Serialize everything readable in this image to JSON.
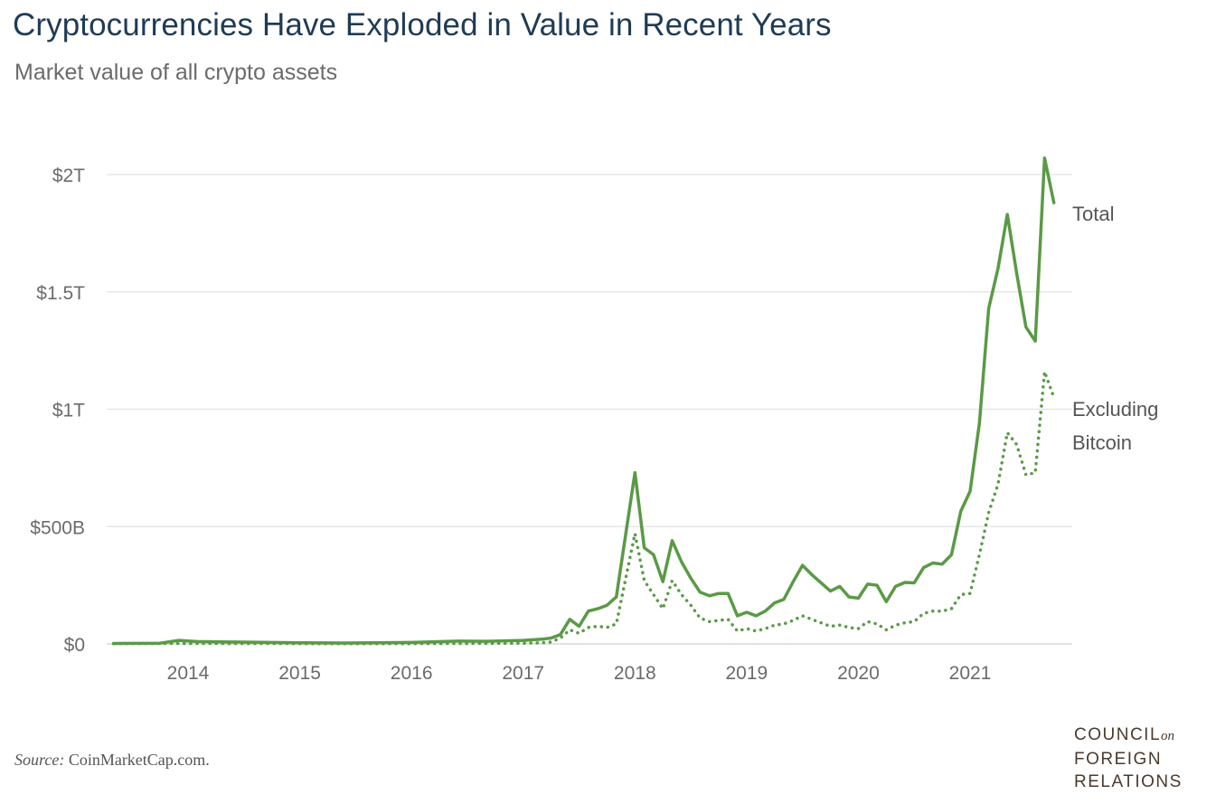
{
  "chart_data": {
    "type": "line",
    "title": "Cryptocurrencies Have Exploded in Value in Recent Years",
    "subtitle": "Market value of all crypto assets",
    "xlabel": "",
    "ylabel": "",
    "x_ticks": [
      "2014",
      "2015",
      "2016",
      "2017",
      "2018",
      "2019",
      "2020",
      "2021"
    ],
    "y_ticks": [
      "$0",
      "$500B",
      "$1T",
      "$1.5T",
      "$2T"
    ],
    "ylim": [
      0,
      2000
    ],
    "y_unit": "billions USD",
    "grid": "horizontal",
    "line_color": "#5a9a46",
    "series": [
      {
        "name": "Total",
        "style": "solid",
        "points": [
          [
            "2013-05-01",
            2
          ],
          [
            "2013-10-01",
            3
          ],
          [
            "2013-12-01",
            15
          ],
          [
            "2014-02-01",
            10
          ],
          [
            "2014-06-01",
            8
          ],
          [
            "2015-01-01",
            5
          ],
          [
            "2015-06-01",
            4
          ],
          [
            "2016-01-01",
            6
          ],
          [
            "2016-06-01",
            12
          ],
          [
            "2016-09-01",
            11
          ],
          [
            "2017-01-01",
            15
          ],
          [
            "2017-03-01",
            20
          ],
          [
            "2017-04-01",
            25
          ],
          [
            "2017-05-01",
            40
          ],
          [
            "2017-06-01",
            105
          ],
          [
            "2017-07-01",
            75
          ],
          [
            "2017-08-01",
            140
          ],
          [
            "2017-09-01",
            150
          ],
          [
            "2017-10-01",
            165
          ],
          [
            "2017-11-01",
            200
          ],
          [
            "2018-01-01",
            730
          ],
          [
            "2018-02-01",
            410
          ],
          [
            "2018-03-01",
            380
          ],
          [
            "2018-04-01",
            265
          ],
          [
            "2018-05-01",
            440
          ],
          [
            "2018-06-01",
            350
          ],
          [
            "2018-07-01",
            280
          ],
          [
            "2018-08-01",
            220
          ],
          [
            "2018-09-01",
            205
          ],
          [
            "2018-10-01",
            215
          ],
          [
            "2018-11-01",
            215
          ],
          [
            "2018-12-01",
            120
          ],
          [
            "2019-01-01",
            135
          ],
          [
            "2019-02-01",
            120
          ],
          [
            "2019-03-01",
            140
          ],
          [
            "2019-04-01",
            175
          ],
          [
            "2019-05-01",
            190
          ],
          [
            "2019-06-01",
            265
          ],
          [
            "2019-07-01",
            335
          ],
          [
            "2019-08-01",
            295
          ],
          [
            "2019-10-01",
            225
          ],
          [
            "2019-11-01",
            245
          ],
          [
            "2019-12-01",
            200
          ],
          [
            "2020-01-01",
            195
          ],
          [
            "2020-02-01",
            255
          ],
          [
            "2020-03-01",
            250
          ],
          [
            "2020-04-01",
            180
          ],
          [
            "2020-05-01",
            245
          ],
          [
            "2020-06-01",
            262
          ],
          [
            "2020-07-01",
            260
          ],
          [
            "2020-08-01",
            325
          ],
          [
            "2020-09-01",
            345
          ],
          [
            "2020-10-01",
            340
          ],
          [
            "2020-11-01",
            380
          ],
          [
            "2020-12-01",
            565
          ],
          [
            "2021-01-01",
            650
          ],
          [
            "2021-02-01",
            940
          ],
          [
            "2021-03-01",
            1430
          ],
          [
            "2021-04-01",
            1600
          ],
          [
            "2021-05-01",
            1830
          ],
          [
            "2021-06-01",
            1580
          ],
          [
            "2021-07-01",
            1350
          ],
          [
            "2021-08-01",
            1290
          ],
          [
            "2021-09-01",
            2070
          ],
          [
            "2021-10-01",
            1880
          ]
        ]
      },
      {
        "name": "Excluding Bitcoin",
        "style": "dotted",
        "points": [
          [
            "2013-05-01",
            1
          ],
          [
            "2014-01-01",
            2
          ],
          [
            "2015-01-01",
            1
          ],
          [
            "2016-01-01",
            1
          ],
          [
            "2017-01-01",
            3
          ],
          [
            "2017-03-01",
            5
          ],
          [
            "2017-04-01",
            8
          ],
          [
            "2017-05-01",
            25
          ],
          [
            "2017-06-01",
            60
          ],
          [
            "2017-07-01",
            45
          ],
          [
            "2017-08-01",
            70
          ],
          [
            "2017-09-01",
            75
          ],
          [
            "2017-10-01",
            70
          ],
          [
            "2017-11-01",
            85
          ],
          [
            "2018-01-01",
            470
          ],
          [
            "2018-02-01",
            270
          ],
          [
            "2018-03-01",
            210
          ],
          [
            "2018-04-01",
            150
          ],
          [
            "2018-05-01",
            270
          ],
          [
            "2018-06-01",
            210
          ],
          [
            "2018-07-01",
            165
          ],
          [
            "2018-08-01",
            110
          ],
          [
            "2018-09-01",
            95
          ],
          [
            "2018-10-01",
            100
          ],
          [
            "2018-11-01",
            105
          ],
          [
            "2018-12-01",
            55
          ],
          [
            "2019-01-01",
            65
          ],
          [
            "2019-02-01",
            55
          ],
          [
            "2019-03-01",
            65
          ],
          [
            "2019-04-01",
            80
          ],
          [
            "2019-05-01",
            85
          ],
          [
            "2019-06-01",
            100
          ],
          [
            "2019-07-01",
            120
          ],
          [
            "2019-08-01",
            105
          ],
          [
            "2019-10-01",
            75
          ],
          [
            "2019-11-01",
            80
          ],
          [
            "2019-12-01",
            70
          ],
          [
            "2020-01-01",
            65
          ],
          [
            "2020-02-01",
            95
          ],
          [
            "2020-03-01",
            85
          ],
          [
            "2020-04-01",
            60
          ],
          [
            "2020-05-01",
            80
          ],
          [
            "2020-06-01",
            90
          ],
          [
            "2020-07-01",
            95
          ],
          [
            "2020-08-01",
            130
          ],
          [
            "2020-09-01",
            140
          ],
          [
            "2020-10-01",
            140
          ],
          [
            "2020-11-01",
            150
          ],
          [
            "2020-12-01",
            210
          ],
          [
            "2021-01-01",
            215
          ],
          [
            "2021-02-01",
            380
          ],
          [
            "2021-03-01",
            560
          ],
          [
            "2021-04-01",
            680
          ],
          [
            "2021-05-01",
            900
          ],
          [
            "2021-06-01",
            850
          ],
          [
            "2021-07-01",
            720
          ],
          [
            "2021-08-01",
            730
          ],
          [
            "2021-09-01",
            1160
          ],
          [
            "2021-10-01",
            1050
          ]
        ]
      }
    ]
  },
  "source_label": "Source:",
  "source_text": "CoinMarketCap.com.",
  "logo": {
    "line1": "COUNCIL",
    "on": "on",
    "line2": "FOREIGN",
    "line3": "RELATIONS"
  }
}
